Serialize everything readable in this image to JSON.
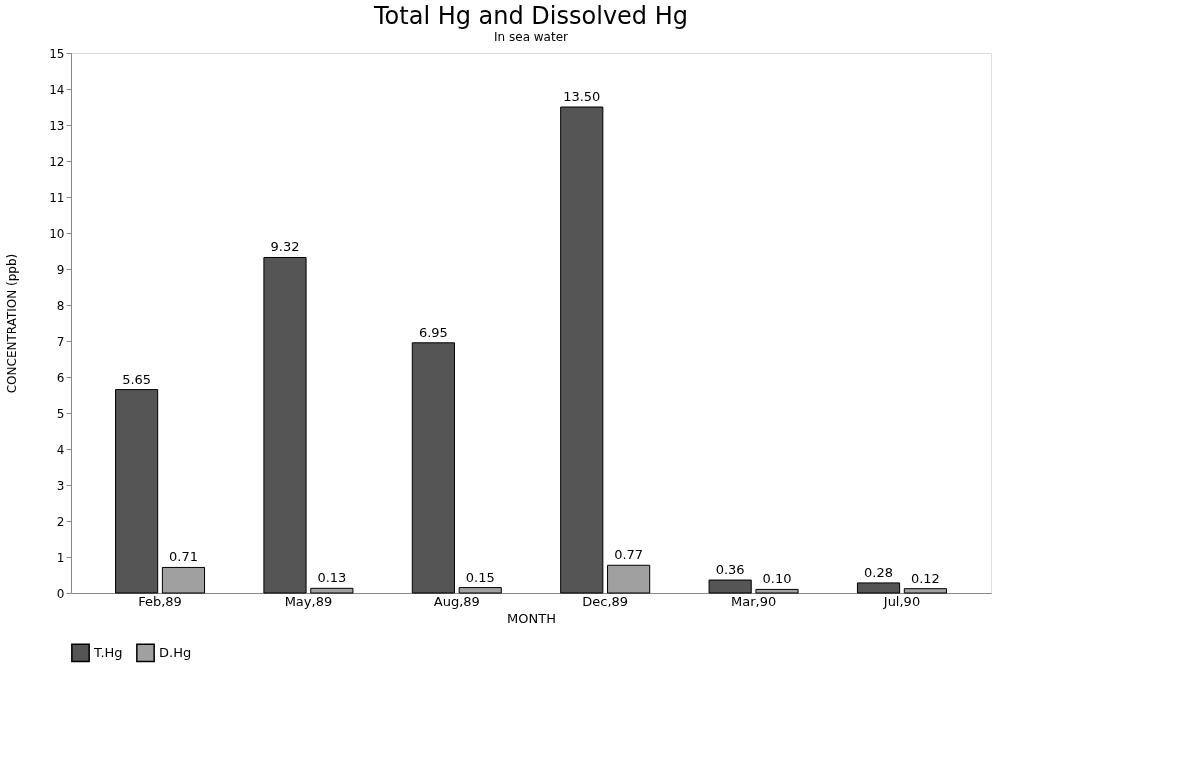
{
  "chart_data": {
    "type": "bar",
    "title": "Total Hg and Dissolved Hg",
    "subtitle": "In sea water",
    "xlabel": "MONTH",
    "ylabel": "CONCENTRATION (ppb)",
    "categories": [
      "Feb,89",
      "May,89",
      "Aug,89",
      "Dec,89",
      "Mar,90",
      "Jul,90"
    ],
    "series": [
      {
        "name": "T.Hg",
        "color": "#555555",
        "values": [
          5.65,
          9.32,
          6.95,
          13.5,
          0.36,
          0.28
        ],
        "value_labels": [
          "5.65",
          "9.32",
          "6.95",
          "13.50",
          "0.36",
          "0.28"
        ]
      },
      {
        "name": "D.Hg",
        "color": "#a0a0a0",
        "values": [
          0.71,
          0.13,
          0.15,
          0.77,
          0.1,
          0.12
        ],
        "value_labels": [
          "0.71",
          "0.13",
          "0.15",
          "0.77",
          "0.10",
          "0.12"
        ]
      }
    ],
    "ylim": [
      0,
      15
    ],
    "yticks": [
      0,
      1,
      2,
      3,
      4,
      5,
      6,
      7,
      8,
      9,
      10,
      11,
      12,
      13,
      14,
      15
    ],
    "grid": false,
    "legend": "bottom"
  }
}
